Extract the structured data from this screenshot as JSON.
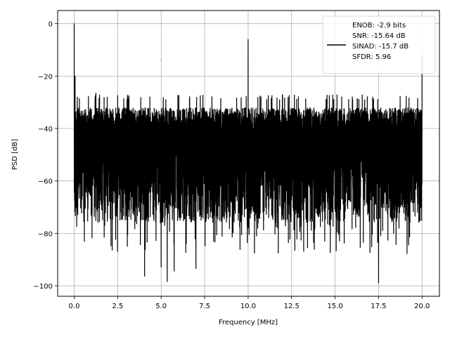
{
  "chart_data": {
    "type": "line",
    "title": "",
    "xlabel": "Frequency [MHz]",
    "ylabel": "PSD [dB]",
    "xlim": [
      -0.95,
      21.0
    ],
    "ylim": [
      -104,
      5
    ],
    "x_ticks": [
      0.0,
      2.5,
      5.0,
      7.5,
      10.0,
      12.5,
      15.0,
      17.5,
      20.0
    ],
    "x_tick_labels": [
      "0.0",
      "2.5",
      "5.0",
      "7.5",
      "10.0",
      "12.5",
      "15.0",
      "17.5",
      "20.0"
    ],
    "y_ticks": [
      0,
      -20,
      -40,
      -60,
      -80,
      -100
    ],
    "y_tick_labels": [
      "0",
      "−20",
      "−40",
      "−60",
      "−80",
      "−100"
    ],
    "grid": true,
    "legend_position": "top-right",
    "series": [
      {
        "name": "ENOB: -2.9 bits\nSNR: -15.64 dB\nSINAD: -15.7 dB\nSFDR: 5.96",
        "color": "#000000",
        "x_range": [
          0.0,
          20.0
        ],
        "noise_floor": {
          "upper_envelope": -30,
          "typical_lower": -70,
          "min_dips": -99
        },
        "peaks": [
          {
            "x": 0.0,
            "y": 0.0
          },
          {
            "x": 0.05,
            "y": -20.0
          },
          {
            "x": 1.25,
            "y": -26.5
          },
          {
            "x": 5.0,
            "y": -14.0
          },
          {
            "x": 10.0,
            "y": -6.0
          },
          {
            "x": 20.0,
            "y": -12.0
          }
        ],
        "dips": [
          {
            "x": 4.05,
            "y": -96.5
          },
          {
            "x": 5.0,
            "y": -93.0
          },
          {
            "x": 5.35,
            "y": -98.5
          },
          {
            "x": 5.75,
            "y": -94.5
          },
          {
            "x": 7.0,
            "y": -93.5
          },
          {
            "x": 17.5,
            "y": -99.0
          }
        ]
      }
    ],
    "legend": {
      "lines": [
        "ENOB: -2.9 bits",
        "SNR: -15.64 dB",
        "SINAD: -15.7 dB",
        "SFDR: 5.96"
      ]
    }
  }
}
